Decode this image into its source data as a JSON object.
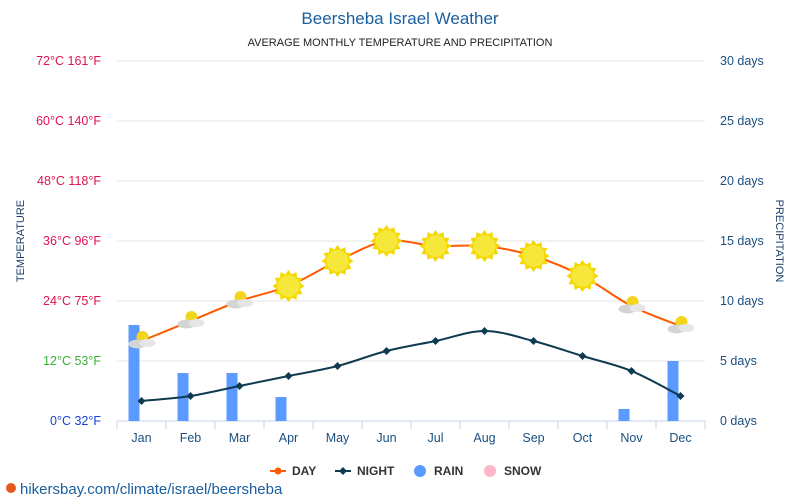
{
  "chart_data": {
    "type": "line",
    "title": "Beersheba Israel Weather",
    "subtitle": "AVERAGE MONTHLY TEMPERATURE AND PRECIPITATION",
    "ylabel_left": "TEMPERATURE",
    "ylabel_right": "PRECIPITATION",
    "categories": [
      "Jan",
      "Feb",
      "Mar",
      "Apr",
      "May",
      "Jun",
      "Jul",
      "Aug",
      "Sep",
      "Oct",
      "Nov",
      "Dec"
    ],
    "left_ticks": [
      {
        "v": 0,
        "label": "0°C 32°F",
        "color": "#1a3fd6"
      },
      {
        "v": 12,
        "label": "12°C 53°F",
        "color": "#36b336"
      },
      {
        "v": 24,
        "label": "24°C 75°F",
        "color": "#e0134f"
      },
      {
        "v": 36,
        "label": "36°C 96°F",
        "color": "#e0134f"
      },
      {
        "v": 48,
        "label": "48°C 118°F",
        "color": "#e0134f"
      },
      {
        "v": 60,
        "label": "60°C 140°F",
        "color": "#e0134f"
      },
      {
        "v": 72,
        "label": "72°C 161°F",
        "color": "#e0134f"
      }
    ],
    "right_ticks": [
      {
        "v": 0,
        "label": "0 days"
      },
      {
        "v": 5,
        "label": "5 days"
      },
      {
        "v": 10,
        "label": "10 days"
      },
      {
        "v": 15,
        "label": "15 days"
      },
      {
        "v": 20,
        "label": "20 days"
      },
      {
        "v": 25,
        "label": "25 days"
      },
      {
        "v": 30,
        "label": "30 days"
      }
    ],
    "ylim_left": [
      0,
      72
    ],
    "ylim_right": [
      0,
      30
    ],
    "series": [
      {
        "name": "DAY",
        "color": "#ff5a00",
        "values": [
          16,
          20,
          24,
          27,
          32,
          36,
          35,
          35,
          33,
          29,
          23,
          19
        ]
      },
      {
        "name": "NIGHT",
        "color": "#0f3b50",
        "values": [
          4,
          5,
          7,
          9,
          11,
          14,
          16,
          18,
          16,
          13,
          10,
          5
        ]
      },
      {
        "name": "RAIN",
        "color": "#5b9bff",
        "values": [
          8,
          4,
          4,
          2,
          0,
          0,
          0,
          0,
          0,
          0,
          1,
          5
        ]
      },
      {
        "name": "SNOW",
        "color": "#ffb6c8",
        "values": [
          0,
          0,
          0,
          0,
          0,
          0,
          0,
          0,
          0,
          0,
          0,
          0
        ]
      }
    ],
    "weather_icons": [
      "partly-cloudy",
      "partly-cloudy",
      "partly-cloudy",
      "sun",
      "sun",
      "sun",
      "sun",
      "sun",
      "sun",
      "sun",
      "partly-cloudy",
      "partly-cloudy"
    ],
    "grid": true,
    "legend": "bottom"
  },
  "footer": {
    "url": "hikersbay.com/climate/israel/beersheba"
  }
}
